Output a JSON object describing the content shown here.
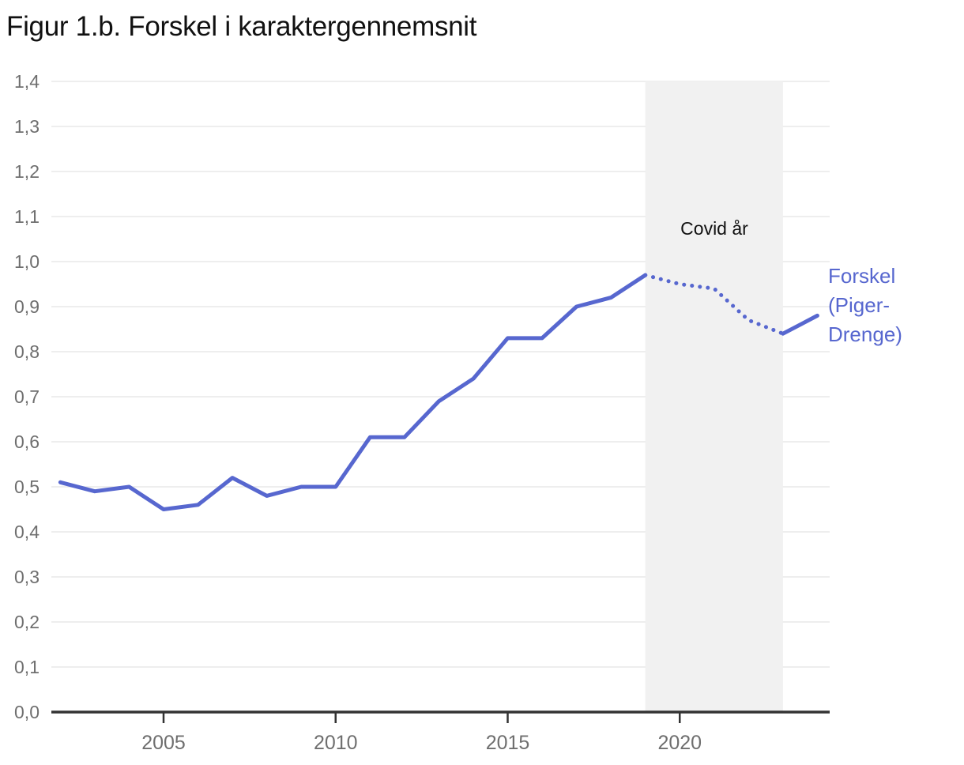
{
  "title": "Figur 1.b. Forskel i karaktergennemsnit",
  "covid_band": {
    "label": "Covid år",
    "from_year": 2019,
    "to_year": 2023
  },
  "legend": {
    "lines": [
      "Forskel",
      "(Piger-",
      "Drenge)"
    ]
  },
  "colors": {
    "line": "#5767cf",
    "legend_text": "#5767cf",
    "band": "#f1f1f1",
    "grid": "#e8e8e8",
    "axis": "#333333",
    "tick_label": "#6f6f6f",
    "title_text": "#111111",
    "covid_label_text": "#111111",
    "background": "#ffffff"
  },
  "chart_data": {
    "type": "line",
    "title": "Figur 1.b. Forskel i karaktergennemsnit",
    "xlabel": "",
    "ylabel": "",
    "x": [
      2002,
      2003,
      2004,
      2005,
      2006,
      2007,
      2008,
      2009,
      2010,
      2011,
      2012,
      2013,
      2014,
      2015,
      2016,
      2017,
      2018,
      2019,
      2020,
      2021,
      2022,
      2023,
      2024
    ],
    "series": [
      {
        "name": "Forskel (Piger-Drenge)",
        "values": [
          0.51,
          0.49,
          0.5,
          0.45,
          0.46,
          0.52,
          0.48,
          0.5,
          0.5,
          0.61,
          0.61,
          0.69,
          0.74,
          0.83,
          0.83,
          0.9,
          0.92,
          0.97,
          0.95,
          0.94,
          0.87,
          0.84,
          0.88
        ]
      }
    ],
    "style_segments": [
      {
        "style": "solid",
        "from_year": 2002,
        "to_year": 2019
      },
      {
        "style": "dotted",
        "from_year": 2019,
        "to_year": 2023
      },
      {
        "style": "solid",
        "from_year": 2023,
        "to_year": 2024
      }
    ],
    "annotation": "Covid år",
    "annotation_band_years": [
      2019,
      2023
    ],
    "ylim": [
      0,
      1.4
    ],
    "xlim": [
      2001.7,
      2024.5
    ],
    "y_ticks": {
      "values": [
        0,
        0.1,
        0.2,
        0.3,
        0.4,
        0.5,
        0.6,
        0.7,
        0.8,
        0.9,
        1.0,
        1.1,
        1.2,
        1.3,
        1.4
      ],
      "labels": [
        "0,0",
        "0,1",
        "0,2",
        "0,3",
        "0,4",
        "0,5",
        "0,6",
        "0,7",
        "0,8",
        "0,9",
        "1,0",
        "1,1",
        "1,2",
        "1,3",
        "1,4"
      ]
    },
    "x_ticks": {
      "values": [
        2005,
        2010,
        2015,
        2020
      ],
      "labels": [
        "2005",
        "2010",
        "2015",
        "2020"
      ]
    },
    "grid": "horizontal",
    "legend_position": "right"
  }
}
